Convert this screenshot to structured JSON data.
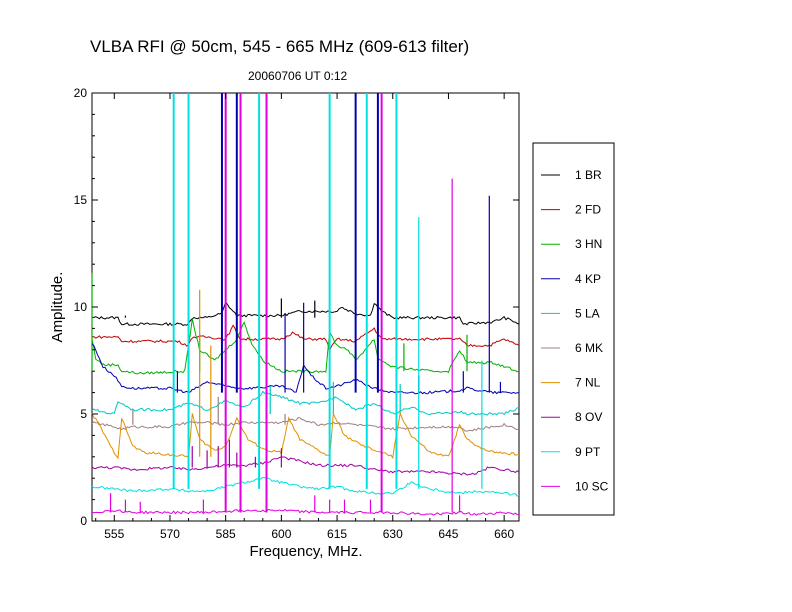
{
  "chart_data": {
    "type": "line",
    "title": "VLBA RFI @ 50cm, 545 - 665 MHz  (609-613 filter)",
    "subtitle": "20060706   UT 0:12",
    "xlabel": "Frequency, MHz.",
    "ylabel": "Amplitude.",
    "xlim": [
      549,
      664
    ],
    "ylim": [
      0,
      20
    ],
    "xticks": [
      555,
      570,
      585,
      600,
      615,
      630,
      645,
      660
    ],
    "yticks": [
      0,
      5,
      10,
      15,
      20
    ],
    "grid": false,
    "legend_position": "right",
    "series": [
      {
        "name": "1 BR",
        "color": "#000000",
        "baseline": 9.5,
        "points": [
          [
            549,
            9.5
          ],
          [
            556,
            9.5
          ],
          [
            557,
            9.2
          ],
          [
            560,
            9.2
          ],
          [
            575,
            9.2
          ],
          [
            576,
            9.5
          ],
          [
            580,
            9.5
          ],
          [
            584,
            9.7
          ],
          [
            585,
            10.2
          ],
          [
            587,
            9.8
          ],
          [
            588,
            9.6
          ],
          [
            592,
            9.6
          ],
          [
            600,
            9.6
          ],
          [
            605,
            9.8
          ],
          [
            610,
            9.8
          ],
          [
            615,
            9.8
          ],
          [
            616,
            10.0
          ],
          [
            620,
            9.7
          ],
          [
            624,
            9.6
          ],
          [
            625,
            10.2
          ],
          [
            627,
            9.8
          ],
          [
            630,
            9.5
          ],
          [
            640,
            9.5
          ],
          [
            648,
            9.5
          ],
          [
            649,
            9.2
          ],
          [
            657,
            9.3
          ],
          [
            660,
            9.5
          ],
          [
            663,
            9.3
          ],
          [
            664,
            9.2
          ]
        ],
        "spikes": [
          [
            558,
            9.6
          ],
          [
            600,
            10.4
          ],
          [
            609,
            10.3
          ]
        ]
      },
      {
        "name": "2 FD",
        "color": "#c00000",
        "baseline": 8.5,
        "points": [
          [
            549,
            8.6
          ],
          [
            556,
            8.6
          ],
          [
            557,
            8.4
          ],
          [
            572,
            8.4
          ],
          [
            575,
            8.2
          ],
          [
            576,
            8.6
          ],
          [
            580,
            8.6
          ],
          [
            585,
            8.5
          ],
          [
            587,
            9.1
          ],
          [
            589,
            8.5
          ],
          [
            595,
            8.5
          ],
          [
            600,
            8.5
          ],
          [
            603,
            8.8
          ],
          [
            606,
            8.5
          ],
          [
            612,
            8.5
          ],
          [
            613,
            8.0
          ],
          [
            615,
            8.5
          ],
          [
            620,
            8.4
          ],
          [
            625,
            9.0
          ],
          [
            627,
            8.5
          ],
          [
            640,
            8.5
          ],
          [
            648,
            8.5
          ],
          [
            650,
            8.2
          ],
          [
            656,
            8.2
          ],
          [
            660,
            8.5
          ],
          [
            664,
            8.2
          ]
        ],
        "spikes": []
      },
      {
        "name": "3 HN",
        "color": "#00b000",
        "baseline": 7.0,
        "points": [
          [
            549,
            8.5
          ],
          [
            550,
            7.6
          ],
          [
            552,
            7.3
          ],
          [
            556,
            7.3
          ],
          [
            557,
            7.0
          ],
          [
            562,
            6.9
          ],
          [
            574,
            7.0
          ],
          [
            576,
            9.4
          ],
          [
            578,
            8.0
          ],
          [
            582,
            7.5
          ],
          [
            585,
            8.0
          ],
          [
            588,
            8.5
          ],
          [
            590,
            9.3
          ],
          [
            592,
            8.3
          ],
          [
            595,
            7.5
          ],
          [
            600,
            7.0
          ],
          [
            612,
            7.0
          ],
          [
            613,
            8.8
          ],
          [
            615,
            8.2
          ],
          [
            618,
            8.0
          ],
          [
            620,
            7.5
          ],
          [
            625,
            8.5
          ],
          [
            626,
            7.6
          ],
          [
            630,
            7.2
          ],
          [
            640,
            7.0
          ],
          [
            645,
            7.0
          ],
          [
            648,
            8.0
          ],
          [
            650,
            7.4
          ],
          [
            657,
            7.4
          ],
          [
            664,
            7.0
          ]
        ],
        "spikes": [
          [
            549,
            11.6
          ],
          [
            578,
            8.7
          ],
          [
            620,
            9.9
          ],
          [
            633,
            8.3
          ],
          [
            650,
            8.7
          ]
        ]
      },
      {
        "name": "4 KP",
        "color": "#0000b0",
        "baseline": 6.0,
        "points": [
          [
            549,
            8.3
          ],
          [
            550,
            8.0
          ],
          [
            552,
            7.2
          ],
          [
            555,
            6.8
          ],
          [
            557,
            6.3
          ],
          [
            560,
            6.2
          ],
          [
            570,
            6.2
          ],
          [
            575,
            6.0
          ],
          [
            580,
            6.5
          ],
          [
            585,
            6.3
          ],
          [
            590,
            6.2
          ],
          [
            600,
            6.3
          ],
          [
            604,
            6.0
          ],
          [
            606,
            7.3
          ],
          [
            608,
            6.8
          ],
          [
            612,
            6.2
          ],
          [
            615,
            6.3
          ],
          [
            620,
            6.6
          ],
          [
            625,
            6.2
          ],
          [
            630,
            6.0
          ],
          [
            640,
            6.0
          ],
          [
            648,
            6.1
          ],
          [
            650,
            6.2
          ],
          [
            657,
            6.0
          ],
          [
            664,
            6.0
          ]
        ],
        "spikes": [
          [
            584,
            20
          ],
          [
            588,
            20
          ],
          [
            572,
            7.0
          ],
          [
            601,
            9.7
          ],
          [
            606,
            10.2
          ],
          [
            620,
            20
          ],
          [
            626,
            20
          ],
          [
            637,
            6.8
          ],
          [
            649,
            7.0
          ],
          [
            656,
            15.2
          ],
          [
            659,
            6.5
          ]
        ]
      },
      {
        "name": "5 LA",
        "color": "#00c8c8",
        "baseline": 5.0,
        "points": [
          [
            549,
            5.2
          ],
          [
            555,
            5.0
          ],
          [
            556,
            5.6
          ],
          [
            560,
            5.2
          ],
          [
            570,
            5.2
          ],
          [
            575,
            5.5
          ],
          [
            580,
            5.2
          ],
          [
            585,
            5.6
          ],
          [
            590,
            5.3
          ],
          [
            595,
            6.0
          ],
          [
            600,
            5.8
          ],
          [
            605,
            5.5
          ],
          [
            610,
            5.5
          ],
          [
            615,
            5.8
          ],
          [
            620,
            5.2
          ],
          [
            625,
            5.5
          ],
          [
            630,
            5.0
          ],
          [
            635,
            5.3
          ],
          [
            640,
            5.0
          ],
          [
            648,
            5.1
          ],
          [
            650,
            5.0
          ],
          [
            660,
            5.0
          ],
          [
            664,
            5.3
          ]
        ],
        "spikes": [
          [
            597,
            6.3
          ],
          [
            614,
            6.5
          ],
          [
            632,
            6.4
          ]
        ]
      },
      {
        "name": "6 MK",
        "color": "#a08080",
        "baseline": 4.5,
        "points": [
          [
            549,
            4.6
          ],
          [
            555,
            4.4
          ],
          [
            557,
            4.3
          ],
          [
            560,
            4.4
          ],
          [
            570,
            4.4
          ],
          [
            575,
            4.6
          ],
          [
            580,
            4.6
          ],
          [
            585,
            4.5
          ],
          [
            590,
            4.6
          ],
          [
            600,
            4.6
          ],
          [
            605,
            4.8
          ],
          [
            610,
            4.5
          ],
          [
            615,
            4.6
          ],
          [
            620,
            4.5
          ],
          [
            625,
            4.4
          ],
          [
            630,
            4.3
          ],
          [
            640,
            4.4
          ],
          [
            648,
            4.4
          ],
          [
            650,
            4.2
          ],
          [
            660,
            4.5
          ],
          [
            664,
            4.3
          ]
        ],
        "spikes": [
          [
            560,
            5.2
          ],
          [
            583,
            5.8
          ],
          [
            601,
            5.0
          ]
        ]
      },
      {
        "name": "7 NL",
        "color": "#e09000",
        "baseline": 3.0,
        "points": [
          [
            549,
            5.0
          ],
          [
            551,
            4.5
          ],
          [
            553,
            3.8
          ],
          [
            555,
            3.2
          ],
          [
            556,
            3.0
          ],
          [
            557,
            4.8
          ],
          [
            560,
            3.5
          ],
          [
            563,
            3.2
          ],
          [
            570,
            3.1
          ],
          [
            575,
            3.0
          ],
          [
            576,
            5.0
          ],
          [
            578,
            3.8
          ],
          [
            582,
            3.3
          ],
          [
            585,
            3.5
          ],
          [
            588,
            4.8
          ],
          [
            591,
            3.8
          ],
          [
            596,
            3.3
          ],
          [
            600,
            3.2
          ],
          [
            602,
            4.8
          ],
          [
            605,
            3.8
          ],
          [
            610,
            3.3
          ],
          [
            613,
            3.0
          ],
          [
            614,
            5.0
          ],
          [
            617,
            4.0
          ],
          [
            622,
            3.5
          ],
          [
            627,
            3.2
          ],
          [
            630,
            3.0
          ],
          [
            632,
            5.0
          ],
          [
            635,
            4.0
          ],
          [
            640,
            3.2
          ],
          [
            645,
            3.0
          ],
          [
            648,
            4.5
          ],
          [
            650,
            3.8
          ],
          [
            655,
            3.3
          ],
          [
            664,
            3.1
          ]
        ],
        "spikes": [
          [
            578,
            10.8
          ],
          [
            581,
            8.2
          ]
        ]
      },
      {
        "name": "8 OV",
        "color": "#a000a0",
        "baseline": 2.5,
        "points": [
          [
            549,
            2.5
          ],
          [
            555,
            2.5
          ],
          [
            560,
            2.4
          ],
          [
            570,
            2.5
          ],
          [
            575,
            2.4
          ],
          [
            580,
            2.5
          ],
          [
            585,
            2.6
          ],
          [
            590,
            2.6
          ],
          [
            595,
            2.7
          ],
          [
            600,
            3.0
          ],
          [
            605,
            2.8
          ],
          [
            610,
            2.6
          ],
          [
            615,
            2.6
          ],
          [
            620,
            2.6
          ],
          [
            625,
            2.4
          ],
          [
            630,
            2.3
          ],
          [
            640,
            2.3
          ],
          [
            648,
            2.2
          ],
          [
            652,
            2.2
          ],
          [
            656,
            2.5
          ],
          [
            660,
            2.4
          ],
          [
            664,
            2.3
          ]
        ],
        "spikes": [
          [
            576,
            3.5
          ],
          [
            580,
            3.3
          ],
          [
            583,
            3.5
          ],
          [
            586,
            3.8
          ],
          [
            588,
            3.2
          ],
          [
            593,
            3.0
          ],
          [
            600,
            3.4
          ]
        ]
      },
      {
        "name": "9 PT",
        "color": "#00e0e0",
        "baseline": 1.5,
        "points": [
          [
            549,
            1.6
          ],
          [
            555,
            1.5
          ],
          [
            560,
            1.4
          ],
          [
            570,
            1.5
          ],
          [
            575,
            1.4
          ],
          [
            580,
            1.4
          ],
          [
            585,
            1.6
          ],
          [
            590,
            1.8
          ],
          [
            595,
            2.0
          ],
          [
            600,
            1.8
          ],
          [
            605,
            1.6
          ],
          [
            610,
            1.5
          ],
          [
            615,
            1.6
          ],
          [
            620,
            1.4
          ],
          [
            625,
            1.3
          ],
          [
            630,
            1.3
          ],
          [
            635,
            1.8
          ],
          [
            640,
            1.5
          ],
          [
            648,
            1.3
          ],
          [
            652,
            1.4
          ],
          [
            660,
            1.3
          ],
          [
            664,
            1.2
          ]
        ],
        "spikes": [
          [
            571,
            20
          ],
          [
            575,
            20
          ],
          [
            594,
            20
          ],
          [
            613,
            20
          ],
          [
            623,
            20
          ],
          [
            631,
            20
          ],
          [
            637,
            14.2
          ],
          [
            654,
            7.5
          ]
        ]
      },
      {
        "name": "10 SC",
        "color": "#e000e0",
        "baseline": 0.4,
        "points": [
          [
            549,
            0.4
          ],
          [
            555,
            0.5
          ],
          [
            560,
            0.4
          ],
          [
            570,
            0.4
          ],
          [
            580,
            0.4
          ],
          [
            590,
            0.5
          ],
          [
            600,
            0.5
          ],
          [
            610,
            0.4
          ],
          [
            620,
            0.4
          ],
          [
            630,
            0.4
          ],
          [
            640,
            0.3
          ],
          [
            648,
            0.4
          ],
          [
            652,
            0.3
          ],
          [
            660,
            0.4
          ],
          [
            664,
            0.3
          ]
        ],
        "spikes": [
          [
            554,
            1.3
          ],
          [
            558,
            1.0
          ],
          [
            562,
            0.9
          ],
          [
            579,
            1.0
          ],
          [
            585,
            20
          ],
          [
            589,
            20
          ],
          [
            596,
            20
          ],
          [
            609,
            1.2
          ],
          [
            613,
            1.0
          ],
          [
            617,
            1.0
          ],
          [
            624,
            1.0
          ],
          [
            627,
            20
          ],
          [
            646,
            16.0
          ],
          [
            648,
            1.2
          ]
        ]
      }
    ]
  }
}
